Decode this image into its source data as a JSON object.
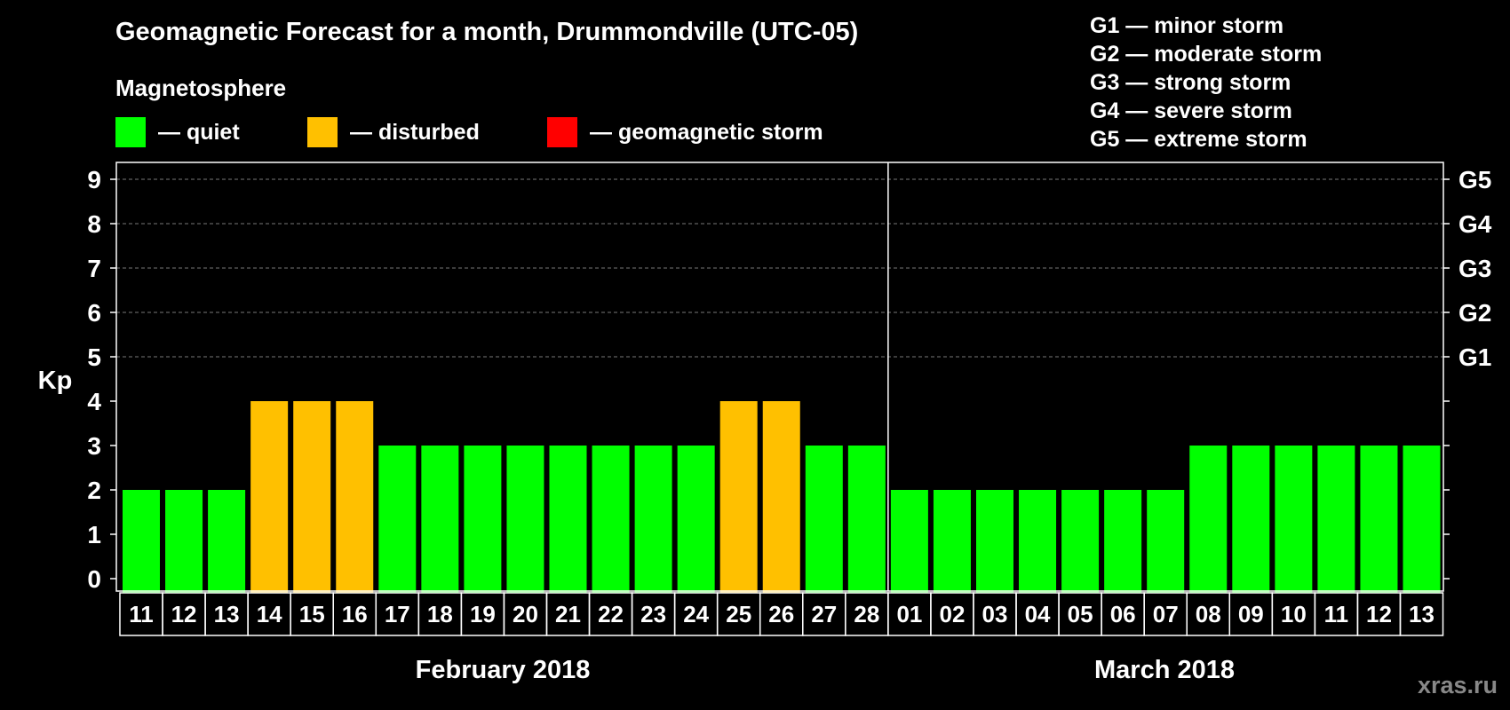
{
  "title": "Geomagnetic Forecast for a month, Drummondville (UTC-05)",
  "magnetosphere_title": "Magnetosphere",
  "legend": [
    {
      "label": "— quiet",
      "color": "#00ff00"
    },
    {
      "label": "— disturbed",
      "color": "#ffc000"
    },
    {
      "label": "— geomagnetic storm",
      "color": "#ff0000"
    }
  ],
  "g_legend": [
    "G1 — minor storm",
    "G2 — moderate storm",
    "G3 — strong storm",
    "G4 — severe storm",
    "G5 — extreme storm"
  ],
  "watermark": "xras.ru",
  "chart_data": {
    "type": "bar",
    "ylabel": "Kp",
    "ylim": [
      0,
      9
    ],
    "yticks": [
      "0",
      "1",
      "2",
      "3",
      "4",
      "5",
      "6",
      "7",
      "8",
      "9"
    ],
    "right_axis_labels": [
      {
        "kp": 5,
        "label": "G1"
      },
      {
        "kp": 6,
        "label": "G2"
      },
      {
        "kp": 7,
        "label": "G3"
      },
      {
        "kp": 8,
        "label": "G4"
      },
      {
        "kp": 9,
        "label": "G5"
      }
    ],
    "grid": "dashed horizontal at Kp 5-9",
    "months": [
      {
        "label": "February 2018",
        "days": [
          "11",
          "12",
          "13",
          "14",
          "15",
          "16",
          "17",
          "18",
          "19",
          "20",
          "21",
          "22",
          "23",
          "24",
          "25",
          "26",
          "27",
          "28"
        ]
      },
      {
        "label": "March 2018",
        "days": [
          "01",
          "02",
          "03",
          "04",
          "05",
          "06",
          "07",
          "08",
          "09",
          "10",
          "11",
          "12",
          "13"
        ]
      }
    ],
    "categories": [
      "11",
      "12",
      "13",
      "14",
      "15",
      "16",
      "17",
      "18",
      "19",
      "20",
      "21",
      "22",
      "23",
      "24",
      "25",
      "26",
      "27",
      "28",
      "01",
      "02",
      "03",
      "04",
      "05",
      "06",
      "07",
      "08",
      "09",
      "10",
      "11",
      "12",
      "13"
    ],
    "values": [
      2,
      2,
      2,
      4,
      4,
      4,
      3,
      3,
      3,
      3,
      3,
      3,
      3,
      3,
      4,
      4,
      3,
      3,
      2,
      2,
      2,
      2,
      2,
      2,
      2,
      3,
      3,
      3,
      3,
      3,
      3
    ],
    "status": [
      "quiet",
      "quiet",
      "quiet",
      "disturbed",
      "disturbed",
      "disturbed",
      "quiet",
      "quiet",
      "quiet",
      "quiet",
      "quiet",
      "quiet",
      "quiet",
      "quiet",
      "disturbed",
      "disturbed",
      "quiet",
      "quiet",
      "quiet",
      "quiet",
      "quiet",
      "quiet",
      "quiet",
      "quiet",
      "quiet",
      "quiet",
      "quiet",
      "quiet",
      "quiet",
      "quiet",
      "quiet"
    ],
    "colors": {
      "quiet": "#00ff00",
      "disturbed": "#ffc000",
      "storm": "#ff0000"
    }
  }
}
